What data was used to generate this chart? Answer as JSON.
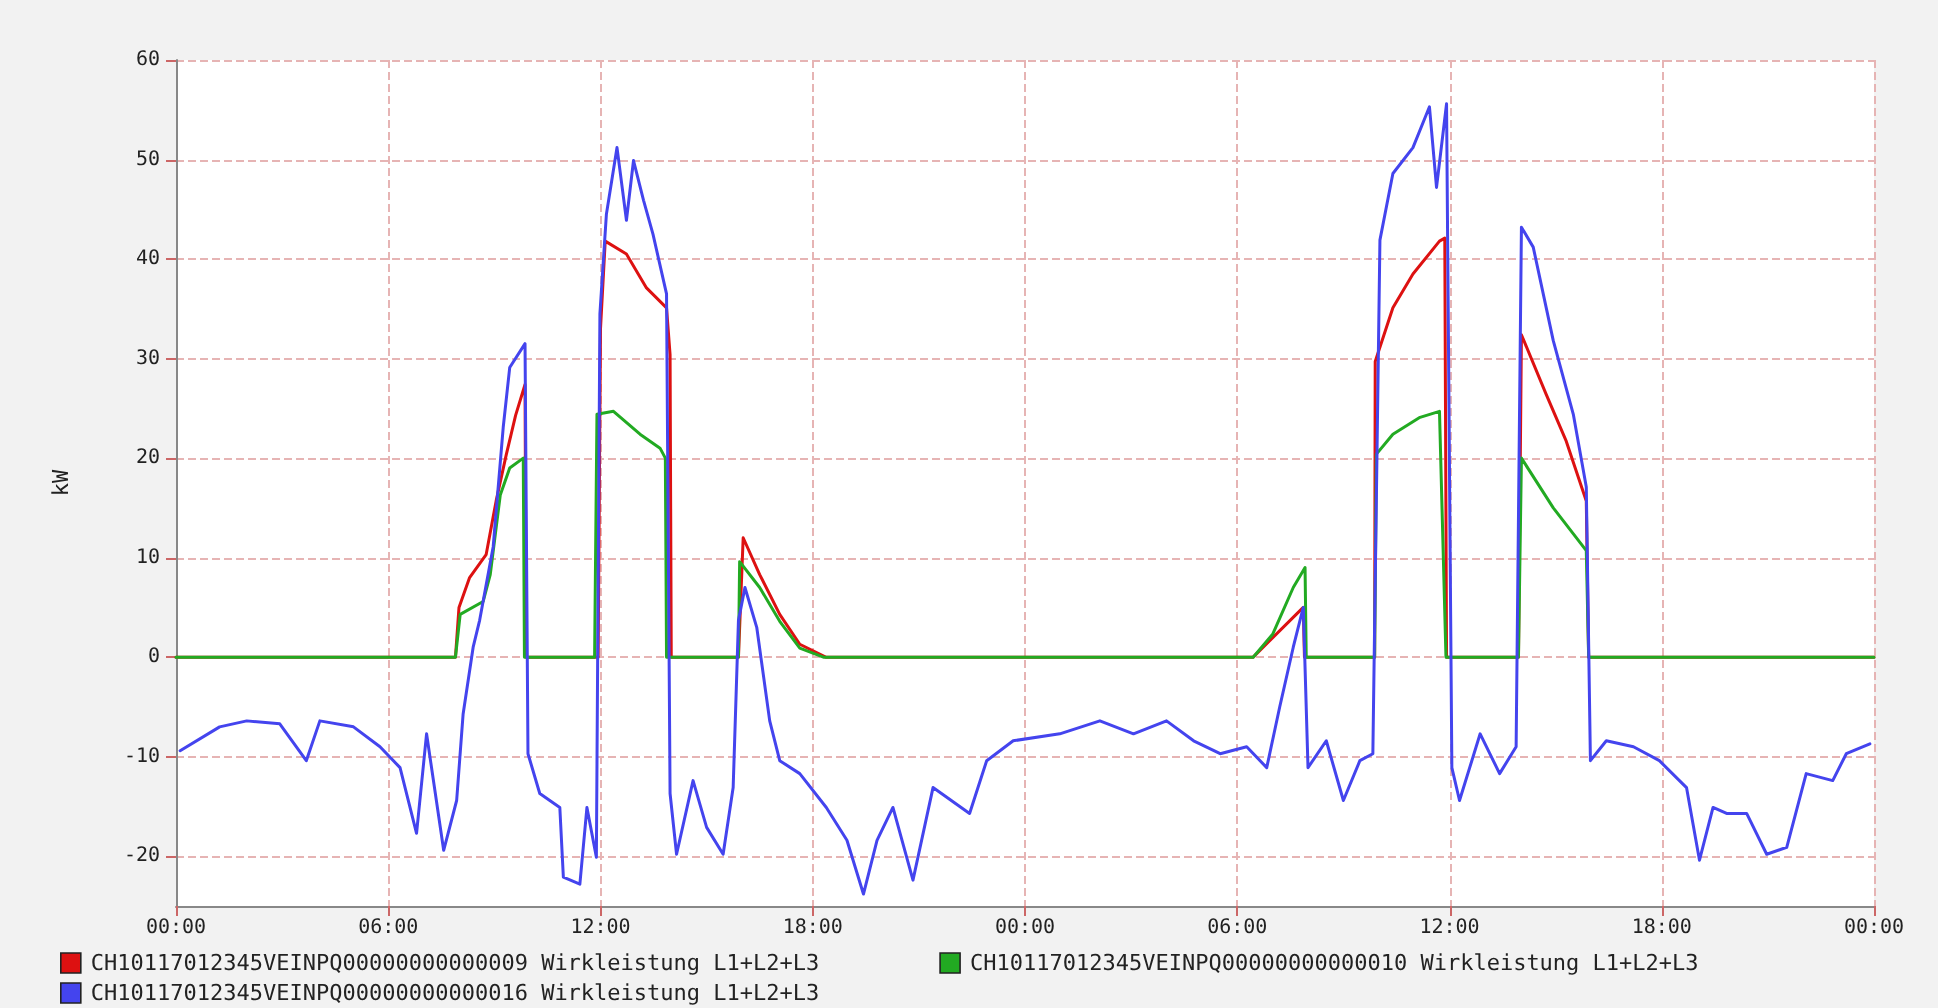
{
  "chart_data": {
    "type": "line",
    "ylabel": "kW",
    "xlim": [
      "--01-01T00:00",
      "--01-03T00:00"
    ],
    "xticks": [
      {
        "value": "--01-01T00:00",
        "label": "00:00"
      },
      {
        "value": "--01-01T06:00",
        "label": "06:00"
      },
      {
        "value": "--01-01T12:00",
        "label": "12:00"
      },
      {
        "value": "--01-01T18:00",
        "label": "18:00"
      },
      {
        "value": "--01-02T00:00",
        "label": "00:00"
      },
      {
        "value": "--01-02T06:00",
        "label": "06:00"
      },
      {
        "value": "--01-02T12:00",
        "label": "12:00"
      },
      {
        "value": "--01-02T18:00",
        "label": "18:00"
      },
      {
        "value": "--01-03T00:00",
        "label": "00:00"
      }
    ],
    "ylim": [
      -25,
      60
    ],
    "yticks": [
      -20,
      -10,
      0,
      10,
      20,
      30,
      40,
      50,
      60
    ],
    "grid": true,
    "legend": "bottom",
    "marker": "none",
    "line_style": "solid",
    "series": [
      {
        "name": "CH10117012345VEINPQ00000000000009 Wirkleistung L1+L2+L3",
        "color": "#dd1111",
        "x": [
          "--01-01T00:00",
          "--01-01T07:54",
          "--01-01T08:00",
          "--01-01T08:18",
          "--01-01T08:46",
          "--01-01T09:03",
          "--01-01T09:20",
          "--01-01T09:36",
          "--01-01T09:52",
          "--01-01T09:54",
          "--01-01T11:56",
          "--01-01T12:00",
          "--01-01T12:08",
          "--01-01T12:44",
          "--01-01T13:18",
          "--01-01T13:52",
          "--01-01T13:58",
          "--01-01T14:00",
          "--01-01T15:54",
          "--01-01T16:02",
          "--01-01T16:30",
          "--01-01T17:04",
          "--01-01T17:38",
          "--01-01T18:22",
          "--01-02T06:27",
          "--01-02T07:40",
          "--01-02T07:52",
          "--01-02T07:54",
          "--01-02T09:53",
          "--01-02T09:54",
          "--01-02T10:24",
          "--01-02T10:58",
          "--01-02T11:43",
          "--01-02T11:52",
          "--01-02T11:55",
          "--01-02T13:57",
          "--01-02T14:02",
          "--01-02T14:44",
          "--01-02T15:18",
          "--01-02T15:52",
          "--01-02T15:56",
          "--01-03T00:00"
        ],
        "values": [
          0,
          0,
          5,
          8,
          10.3,
          15.7,
          20.3,
          24.3,
          27.4,
          0,
          0,
          33,
          41.8,
          40.5,
          37.1,
          35.1,
          30.4,
          0,
          0,
          12.0,
          8.3,
          4.3,
          1.3,
          0,
          0,
          4.3,
          5.0,
          0,
          0,
          29.7,
          35.1,
          38.5,
          41.8,
          42.1,
          0,
          0,
          32.4,
          26.4,
          21.7,
          15.7,
          0,
          0
        ]
      },
      {
        "name": "CH10117012345VEINPQ00000000000010 Wirkleistung L1+L2+L3",
        "color": "#22aa22",
        "x": [
          "--01-01T00:00",
          "--01-01T07:54",
          "--01-01T08:02",
          "--01-01T08:41",
          "--01-01T08:53",
          "--01-01T09:10",
          "--01-01T09:26",
          "--01-01T09:49",
          "--01-01T09:51",
          "--01-01T11:50",
          "--01-01T11:54",
          "--01-01T12:22",
          "--01-01T13:07",
          "--01-01T13:41",
          "--01-01T13:50",
          "--01-01T13:52",
          "--01-01T15:54",
          "--01-01T15:56",
          "--01-01T16:30",
          "--01-01T17:04",
          "--01-01T17:38",
          "--01-01T18:18",
          "--01-02T06:27",
          "--01-02T07:00",
          "--01-02T07:35",
          "--01-02T07:55",
          "--01-02T07:57",
          "--01-02T09:53",
          "--01-02T09:56",
          "--01-02T10:24",
          "--01-02T11:10",
          "--01-02T11:43",
          "--01-02T11:54",
          "--01-02T13:57",
          "--01-02T14:02",
          "--01-02T14:56",
          "--01-02T15:52",
          "--01-02T15:56",
          "--01-03T00:00"
        ],
        "values": [
          0,
          0,
          4.3,
          5.6,
          8.3,
          16.3,
          19.0,
          20.0,
          0,
          0,
          24.4,
          24.7,
          22.4,
          21.0,
          20.0,
          0,
          0,
          9.6,
          7.0,
          3.6,
          0.9,
          0,
          0,
          2.3,
          7.0,
          9.0,
          0,
          0,
          20.4,
          22.4,
          24.1,
          24.7,
          0,
          0,
          20.0,
          15.0,
          10.7,
          0,
          0
        ]
      },
      {
        "name": "CH10117012345VEINPQ00000000000016 Wirkleistung L1+L2+L3",
        "color": "#4444ee",
        "x": [
          "--01-01T00:07",
          "--01-01T01:14",
          "--01-01T02:00",
          "--01-01T02:56",
          "--01-01T03:41",
          "--01-01T04:04",
          "--01-01T05:01",
          "--01-01T05:46",
          "--01-01T06:20",
          "--01-01T06:48",
          "--01-01T07:05",
          "--01-01T07:34",
          "--01-01T07:56",
          "--01-01T08:07",
          "--01-01T08:24",
          "--01-01T08:35",
          "--01-01T08:58",
          "--01-01T09:15",
          "--01-01T09:26",
          "--01-01T09:52",
          "--01-01T09:57",
          "--01-01T10:17",
          "--01-01T10:51",
          "--01-01T10:57",
          "--01-01T11:25",
          "--01-01T11:37",
          "--01-01T11:53",
          "--01-01T11:59",
          "--01-01T12:10",
          "--01-01T12:28",
          "--01-01T12:44",
          "--01-01T12:56",
          "--01-01T13:13",
          "--01-01T13:29",
          "--01-01T13:52",
          "--01-01T13:58",
          "--01-01T14:09",
          "--01-01T14:37",
          "--01-01T15:00",
          "--01-01T15:28",
          "--01-01T15:45",
          "--01-01T15:54",
          "--01-01T16:05",
          "--01-01T16:25",
          "--01-01T16:47",
          "--01-01T17:04",
          "--01-01T17:38",
          "--01-01T18:23",
          "--01-01T18:58",
          "--01-01T19:26",
          "--01-01T19:49",
          "--01-01T20:16",
          "--01-01T20:50",
          "--01-01T21:24",
          "--01-01T22:26",
          "--01-01T22:55",
          "--01-01T23:40",
          "--01-02T00:59",
          "--01-02T02:07",
          "--01-02T03:04",
          "--01-02T04:00",
          "--01-02T04:46",
          "--01-02T05:31",
          "--01-02T06:16",
          "--01-02T06:50",
          "--01-02T07:12",
          "--01-02T07:35",
          "--01-02T07:52",
          "--01-02T08:00",
          "--01-02T08:31",
          "--01-02T09:00",
          "--01-02T09:28",
          "--01-02T09:50",
          "--01-02T10:02",
          "--01-02T10:24",
          "--01-02T10:58",
          "--01-02T11:26",
          "--01-02T11:38",
          "--01-02T11:55",
          "--01-02T12:04",
          "--01-02T12:17",
          "--01-02T12:52",
          "--01-02T13:25",
          "--01-02T13:53",
          "--01-02T14:02",
          "--01-02T14:22",
          "--01-02T14:56",
          "--01-02T15:30",
          "--01-02T15:52",
          "--01-02T15:59",
          "--01-02T16:26",
          "--01-02T17:12",
          "--01-02T17:56",
          "--01-02T18:42",
          "--01-02T19:04",
          "--01-02T19:27",
          "--01-02T19:50",
          "--01-02T20:24",
          "--01-02T20:58",
          "--01-02T21:32",
          "--01-02T22:05",
          "--01-02T22:50",
          "--01-02T23:13",
          "--01-02T23:53"
        ],
        "values": [
          -9.4,
          -7.0,
          -6.4,
          -6.7,
          -10.4,
          -6.4,
          -7.0,
          -9.0,
          -11.1,
          -17.7,
          -7.7,
          -19.4,
          -14.4,
          -5.7,
          1.0,
          3.7,
          11.1,
          23.1,
          29.1,
          31.5,
          -9.7,
          -13.7,
          -15.1,
          -22.1,
          -22.8,
          -15.1,
          -20.1,
          34.5,
          44.5,
          51.2,
          43.9,
          49.9,
          45.9,
          42.5,
          36.5,
          -13.7,
          -19.8,
          -12.4,
          -17.1,
          -19.8,
          -13.1,
          3.7,
          7.0,
          3.0,
          -6.4,
          -10.4,
          -11.7,
          -15.1,
          -18.4,
          -23.8,
          -18.4,
          -15.1,
          -22.4,
          -13.1,
          -15.7,
          -10.4,
          -8.4,
          -7.7,
          -6.4,
          -7.7,
          -6.4,
          -8.4,
          -9.7,
          -9.0,
          -11.1,
          -5.0,
          1.0,
          5.0,
          -11.1,
          -8.4,
          -14.4,
          -10.4,
          -9.7,
          41.9,
          48.6,
          51.2,
          55.3,
          47.2,
          55.6,
          -11.1,
          -14.4,
          -7.7,
          -11.7,
          -9.0,
          43.2,
          41.2,
          31.8,
          24.4,
          17.1,
          -10.4,
          -8.4,
          -9.0,
          -10.4,
          -13.1,
          -20.4,
          -15.1,
          -15.7,
          -15.7,
          -19.8,
          -19.1,
          -11.7,
          -12.4,
          -9.7,
          -8.7
        ]
      }
    ]
  }
}
